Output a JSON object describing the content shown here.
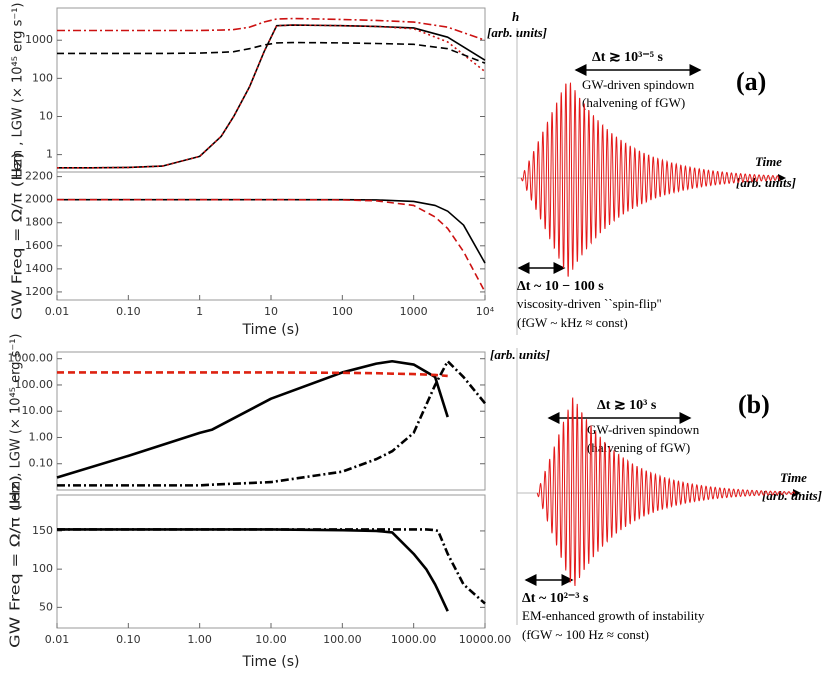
{
  "chart_data": [
    {
      "type": "line",
      "ylabel": "Lem , LGW  (× 10⁴⁵ erg s⁻¹)",
      "xscale": "log",
      "yscale": "log",
      "xlim": [
        0.01,
        10000
      ],
      "ylim": [
        0.35,
        7000
      ],
      "yticks": [
        1,
        10,
        100,
        1000
      ],
      "x": [
        0.01,
        0.03,
        0.1,
        0.3,
        1,
        2,
        3,
        5,
        8,
        12,
        20,
        50,
        100,
        300,
        1000,
        3000,
        10000
      ],
      "series": [
        {
          "color": "#000000",
          "dash": "solid",
          "values": [
            0.45,
            0.45,
            0.46,
            0.5,
            0.9,
            3,
            10,
            60,
            500,
            2400,
            2500,
            2450,
            2400,
            2300,
            2100,
            1200,
            300
          ]
        },
        {
          "color": "#cc1111",
          "dash": "dot",
          "values": [
            0.45,
            0.45,
            0.46,
            0.5,
            0.9,
            3,
            10,
            60,
            500,
            2400,
            2500,
            2450,
            2400,
            2300,
            2000,
            900,
            150
          ]
        },
        {
          "color": "#cc1111",
          "dash": "dashdot",
          "values": [
            1800,
            1800,
            1800,
            1800,
            1800,
            1850,
            1900,
            2200,
            3000,
            3600,
            3700,
            3600,
            3500,
            3300,
            3000,
            2200,
            1000
          ]
        },
        {
          "color": "#000000",
          "dash": "dash",
          "values": [
            450,
            450,
            450,
            450,
            460,
            480,
            500,
            600,
            750,
            850,
            870,
            860,
            850,
            820,
            780,
            600,
            250
          ]
        }
      ]
    },
    {
      "type": "line",
      "ylabel": "GW Freq = Ω/π  (Hz)",
      "xlabel": "Time (s)",
      "xscale": "log",
      "xlim": [
        0.01,
        10000
      ],
      "ylim": [
        1130,
        2240
      ],
      "xticks": [
        0.01,
        {
          "value": 0.1,
          "label": "0.10"
        },
        1,
        10,
        100,
        1000,
        {
          "value": 10000,
          "label": "10⁴"
        }
      ],
      "yticks": [
        1200,
        1400,
        1600,
        1800,
        2000,
        2200
      ],
      "x": [
        0.01,
        1,
        10,
        100,
        300,
        1000,
        2000,
        3000,
        5000,
        10000
      ],
      "series": [
        {
          "color": "#000000",
          "dash": "solid",
          "values": [
            2000,
            2000,
            2000,
            2000,
            1998,
            1985,
            1950,
            1900,
            1780,
            1450
          ]
        },
        {
          "color": "#cc1111",
          "dash": "dash",
          "values": [
            2000,
            2000,
            2000,
            1998,
            1990,
            1950,
            1850,
            1750,
            1550,
            1200
          ]
        }
      ]
    },
    {
      "type": "line",
      "ylabel": "Lem , LGW  (× 10⁴⁵ erg s⁻¹)",
      "xscale": "log",
      "yscale": "log",
      "xlim": [
        0.01,
        10000
      ],
      "ylim": [
        0.01,
        1800
      ],
      "yticks": [
        {
          "value": 0.1,
          "label": "0.10"
        },
        {
          "value": 1,
          "label": "1.00"
        },
        {
          "value": 10,
          "label": "10.00"
        },
        {
          "value": 100,
          "label": "100.00"
        },
        {
          "value": 1000,
          "label": "1000.00"
        }
      ],
      "x": [
        0.01,
        0.1,
        1,
        1.5,
        10,
        100,
        300,
        500,
        1000,
        2000,
        3000,
        5000,
        10000
      ],
      "series": [
        {
          "color": "#000000",
          "dash": "solid",
          "values": [
            0.03,
            0.2,
            1.5,
            2,
            30,
            300,
            650,
            800,
            600,
            200,
            6,
            null,
            null
          ]
        },
        {
          "color": "#dd2211",
          "dash": "dash",
          "values": [
            300,
            300,
            300,
            300,
            300,
            290,
            280,
            270,
            260,
            240,
            220,
            null,
            null
          ]
        },
        {
          "color": "#000000",
          "dash": "dashdot",
          "values": [
            0.015,
            0.015,
            0.015,
            0.016,
            0.02,
            0.05,
            0.15,
            0.3,
            1.5,
            100,
            800,
            200,
            20
          ]
        }
      ]
    },
    {
      "type": "line",
      "ylabel": "GW Freq = Ω/π  (Hz)",
      "xlabel": "Time (s)",
      "xscale": "log",
      "xlim": [
        0.01,
        10000
      ],
      "ylim": [
        23,
        197
      ],
      "xticks": [
        0.01,
        {
          "value": 0.1,
          "label": "0.10"
        },
        {
          "value": 1,
          "label": "1.00"
        },
        {
          "value": 10,
          "label": "10.00"
        },
        {
          "value": 100,
          "label": "100.00"
        },
        {
          "value": 1000,
          "label": "1000.00"
        },
        {
          "value": 10000,
          "label": "10000.00"
        }
      ],
      "yticks": [
        50,
        100,
        150
      ],
      "x": [
        0.01,
        1,
        10,
        100,
        300,
        500,
        1000,
        1500,
        2000,
        2200,
        3000,
        5000,
        10000
      ],
      "series": [
        {
          "color": "#000000",
          "dash": "solid",
          "values": [
            152,
            152,
            152,
            151,
            150,
            148,
            120,
            100,
            80,
            72,
            45,
            null,
            null
          ]
        },
        {
          "color": "#000000",
          "dash": "dashdot",
          "values": [
            152,
            152,
            152,
            152,
            152,
            152,
            152,
            152,
            151,
            150,
            120,
            80,
            55
          ]
        }
      ]
    }
  ],
  "schematics": [
    {
      "yaxis": "h",
      "yunits": "[arb. units]",
      "xaxis": "Time",
      "xunits": "[arb. units]",
      "panel": "(a)",
      "long_dt": "Δt ≳ 10³⁻⁵ s",
      "long_1": "GW-driven spindown",
      "long_2": "(halvening of fGW)",
      "short_dt": "Δt ~ 10 − 100 s",
      "short_1": "viscosity-driven ``spin-flip''",
      "short_2": "(fGW ~ kHz ≈ const)"
    },
    {
      "yunits": "[arb. units]",
      "xaxis": "Time",
      "xunits": "[arb. units]",
      "panel": "(b)",
      "long_dt": "Δt ≳ 10³ s",
      "long_1": "GW-driven spindown",
      "long_2": "(halvening of fGW)",
      "short_dt": "Δt ~ 10²⁻³ s",
      "short_1": "EM-enhanced growth of instability",
      "short_2": "(fGW ~ 100 Hz ≈ const)"
    }
  ]
}
